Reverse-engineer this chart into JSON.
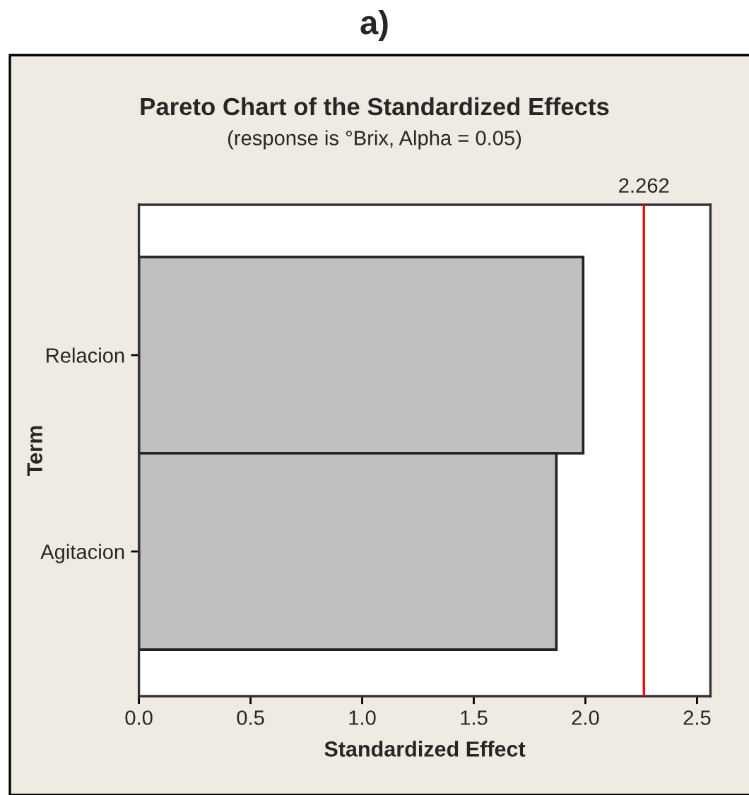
{
  "chart_data": {
    "type": "bar",
    "orientation": "horizontal",
    "title": "Pareto Chart of the Standardized Effects",
    "subtitle": "(response is °Brix, Alpha = 0.05)",
    "xlabel": "Standardized Effect",
    "ylabel": "Term",
    "annotations": [
      "a)"
    ],
    "categories": [
      "Relacion",
      "Agitacion"
    ],
    "values": [
      1.99,
      1.87
    ],
    "color": "#c0c0c0",
    "xlim": [
      0,
      2.56
    ],
    "xticks": [
      {
        "value": 0,
        "label": "0.0"
      },
      {
        "value": 0.5,
        "label": "0.5"
      },
      {
        "value": 1,
        "label": "1.0"
      },
      {
        "value": 1.5,
        "label": "1.5"
      },
      {
        "value": 2,
        "label": "2.0"
      },
      {
        "value": 2.5,
        "label": "2.5"
      }
    ],
    "ref_lines": [
      {
        "axis": "x",
        "value": 2.262,
        "label": "2.262",
        "color": "#ff0000"
      }
    ],
    "marker": "none"
  }
}
